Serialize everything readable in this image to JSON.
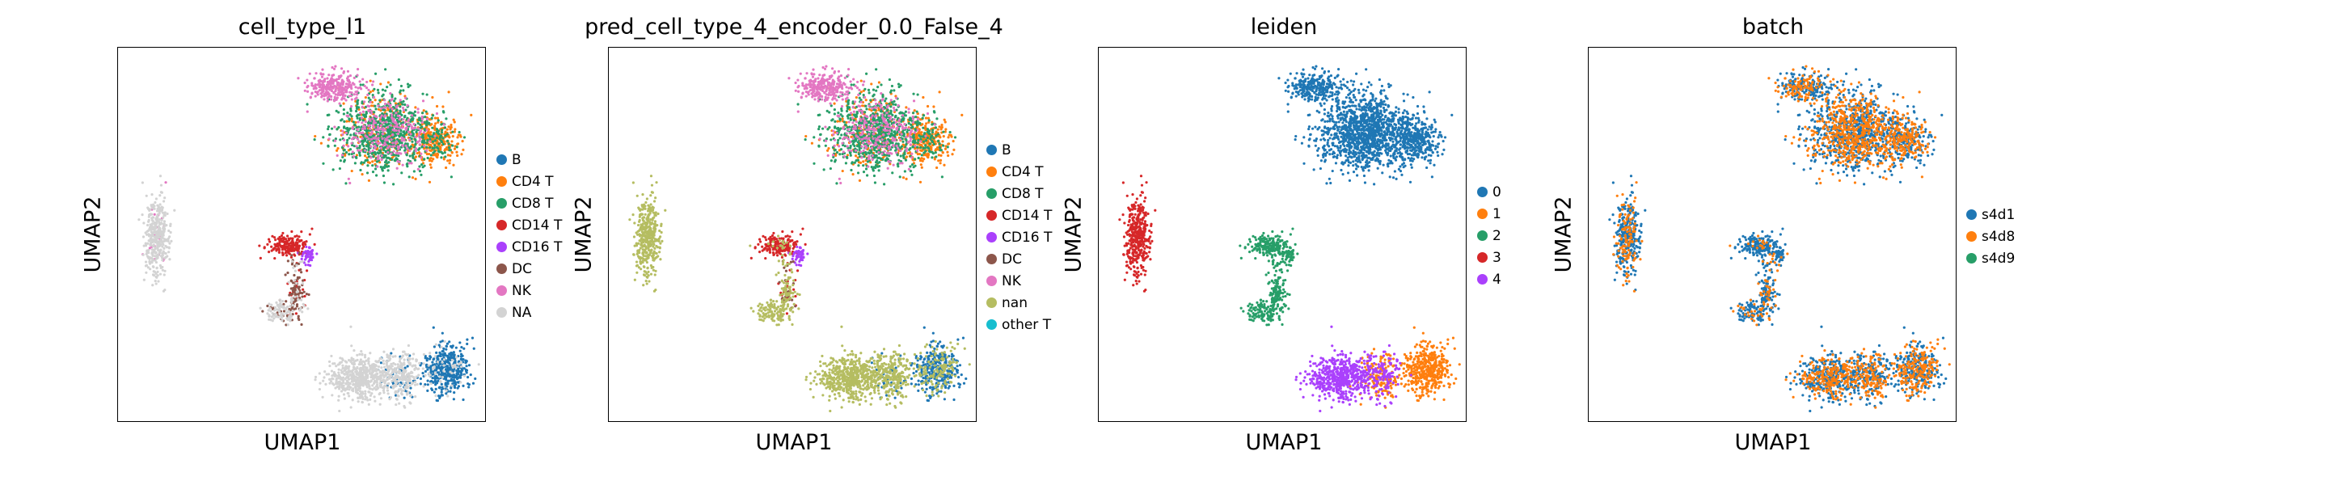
{
  "chart_data": [
    {
      "type": "scatter",
      "title": "cell_type_l1",
      "xlabel": "UMAP1",
      "ylabel": "UMAP2",
      "legend_position": "right",
      "categories": [
        {
          "name": "B",
          "color": "#1f77b4"
        },
        {
          "name": "CD4 T",
          "color": "#ff7f0e"
        },
        {
          "name": "CD8 T",
          "color": "#279e68"
        },
        {
          "name": "CD14 T",
          "color": "#d62728"
        },
        {
          "name": "CD16 T",
          "color": "#aa40fc"
        },
        {
          "name": "DC",
          "color": "#8c564b"
        },
        {
          "name": "NK",
          "color": "#e377c2"
        },
        {
          "name": "NA",
          "color": "#d3d3d3"
        }
      ]
    },
    {
      "type": "scatter",
      "title": "pred_cell_type_4_encoder_0.0_False_4",
      "xlabel": "UMAP1",
      "ylabel": "UMAP2",
      "legend_position": "right",
      "categories": [
        {
          "name": "B",
          "color": "#1f77b4"
        },
        {
          "name": "CD4 T",
          "color": "#ff7f0e"
        },
        {
          "name": "CD8 T",
          "color": "#279e68"
        },
        {
          "name": "CD14 T",
          "color": "#d62728"
        },
        {
          "name": "CD16 T",
          "color": "#aa40fc"
        },
        {
          "name": "DC",
          "color": "#8c564b"
        },
        {
          "name": "NK",
          "color": "#e377c2"
        },
        {
          "name": "nan",
          "color": "#b5bd61"
        },
        {
          "name": "other T",
          "color": "#17becf"
        }
      ]
    },
    {
      "type": "scatter",
      "title": "leiden",
      "xlabel": "UMAP1",
      "ylabel": "UMAP2",
      "legend_position": "right",
      "categories": [
        {
          "name": "0",
          "color": "#1f77b4"
        },
        {
          "name": "1",
          "color": "#ff7f0e"
        },
        {
          "name": "2",
          "color": "#279e68"
        },
        {
          "name": "3",
          "color": "#d62728"
        },
        {
          "name": "4",
          "color": "#aa40fc"
        }
      ]
    },
    {
      "type": "scatter",
      "title": "batch",
      "xlabel": "UMAP1",
      "ylabel": "UMAP2",
      "legend_position": "right",
      "categories": [
        {
          "name": "s4d1",
          "color": "#1f77b4"
        },
        {
          "name": "s4d8",
          "color": "#ff7f0e"
        },
        {
          "name": "s4d9",
          "color": "#279e68"
        }
      ]
    }
  ]
}
